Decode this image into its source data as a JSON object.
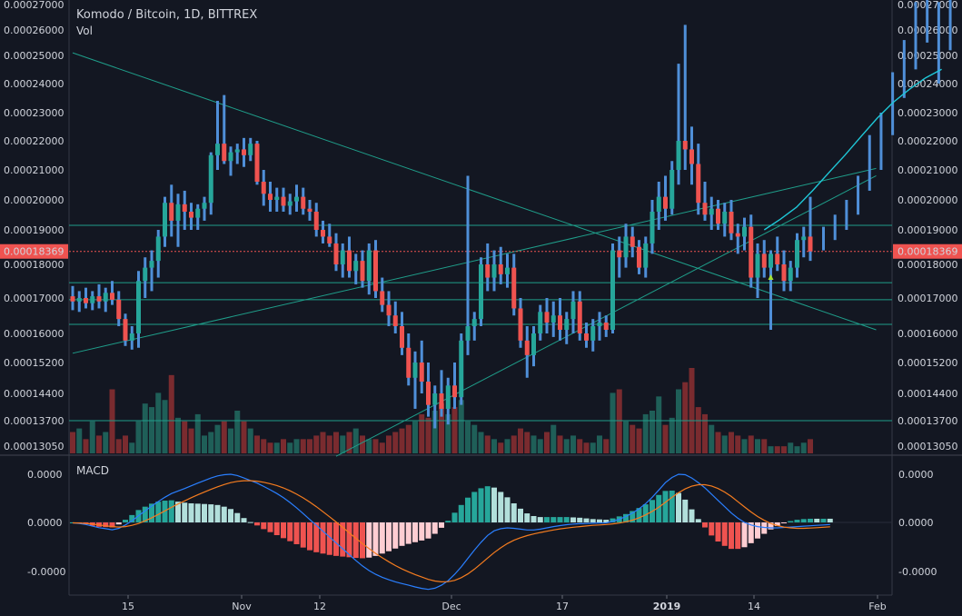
{
  "header": {
    "symbol_title": "Komodo / Bitcoin, 1D, BITTREX",
    "volume_label": "Vol",
    "macd_label": "MACD"
  },
  "colors": {
    "background": "#131722",
    "up": "#26a69a",
    "down": "#ef5350",
    "wick_blue": "#4f8fd8",
    "trend_line": "#1f9e8a",
    "moving_average": "#1fc8d8",
    "macd_line": "#2a7fff",
    "signal_line": "#f57c1f",
    "price_label_bg": "#ef5350",
    "grid": "#2a2e39"
  },
  "price_axis": {
    "ticks": [
      "0.00027000",
      "0.00026000",
      "0.00025000",
      "0.00024000",
      "0.00023000",
      "0.00022000",
      "0.00021000",
      "0.00020000",
      "0.00019000",
      "0.00018000",
      "0.00017000",
      "0.00016000",
      "0.00015200",
      "0.00014400",
      "0.00013700",
      "0.00013050"
    ],
    "current_price": "0.00018369"
  },
  "macd_axis": {
    "ticks": [
      "0.0000",
      "0.0000",
      "-0.0000"
    ]
  },
  "time_axis": {
    "labels": [
      "15",
      "Nov",
      "12",
      "Dec",
      "17",
      "2019",
      "14",
      "Feb"
    ],
    "bold_label": "2019"
  },
  "chart_data": {
    "type": "candlestick",
    "title": "Komodo / Bitcoin, 1D, BITTREX",
    "scale": "log",
    "ylim": [
      0.0001295,
      0.000271
    ],
    "x": {
      "start": "2018-10-06",
      "end": "2019-02-01"
    },
    "candles": [
      {
        "o": 0.0001705,
        "h": 0.0001735,
        "l": 0.0001665,
        "c": 0.000169
      },
      {
        "o": 0.000169,
        "h": 0.000172,
        "l": 0.000166,
        "c": 0.00017
      },
      {
        "o": 0.00017,
        "h": 0.000173,
        "l": 0.000167,
        "c": 0.0001685
      },
      {
        "o": 0.0001685,
        "h": 0.000172,
        "l": 0.0001665,
        "c": 0.0001705
      },
      {
        "o": 0.0001705,
        "h": 0.000174,
        "l": 0.000167,
        "c": 0.000169
      },
      {
        "o": 0.000169,
        "h": 0.000173,
        "l": 0.000166,
        "c": 0.0001715
      },
      {
        "o": 0.0001715,
        "h": 0.000175,
        "l": 0.000168,
        "c": 0.0001695
      },
      {
        "o": 0.0001695,
        "h": 0.000172,
        "l": 0.000162,
        "c": 0.000164
      },
      {
        "o": 0.000164,
        "h": 0.0001655,
        "l": 0.0001565,
        "c": 0.000158
      },
      {
        "o": 0.000158,
        "h": 0.000162,
        "l": 0.0001555,
        "c": 0.00016
      },
      {
        "o": 0.00016,
        "h": 0.000178,
        "l": 0.000156,
        "c": 0.000175
      },
      {
        "o": 0.000175,
        "h": 0.000182,
        "l": 0.00017,
        "c": 0.000179
      },
      {
        "o": 0.000179,
        "h": 0.000184,
        "l": 0.000172,
        "c": 0.000181
      },
      {
        "o": 0.000181,
        "h": 0.00019,
        "l": 0.000176,
        "c": 0.000188
      },
      {
        "o": 0.000188,
        "h": 0.000201,
        "l": 0.000185,
        "c": 0.000199
      },
      {
        "o": 0.000199,
        "h": 0.000205,
        "l": 0.000188,
        "c": 0.000193
      },
      {
        "o": 0.000193,
        "h": 0.000202,
        "l": 0.000185,
        "c": 0.0001985
      },
      {
        "o": 0.0001985,
        "h": 0.000203,
        "l": 0.00019,
        "c": 0.000196
      },
      {
        "o": 0.000196,
        "h": 0.000199,
        "l": 0.00019,
        "c": 0.000194
      },
      {
        "o": 0.000194,
        "h": 0.0001985,
        "l": 0.00019,
        "c": 0.000197
      },
      {
        "o": 0.000197,
        "h": 0.000201,
        "l": 0.000193,
        "c": 0.000199
      },
      {
        "o": 0.000199,
        "h": 0.000216,
        "l": 0.000195,
        "c": 0.000215
      },
      {
        "o": 0.000215,
        "h": 0.000234,
        "l": 0.00021,
        "c": 0.000219
      },
      {
        "o": 0.000219,
        "h": 0.000236,
        "l": 0.000212,
        "c": 0.000213
      },
      {
        "o": 0.000213,
        "h": 0.000218,
        "l": 0.000208,
        "c": 0.000216
      },
      {
        "o": 0.000216,
        "h": 0.000219,
        "l": 0.000212,
        "c": 0.000217
      },
      {
        "o": 0.000217,
        "h": 0.000221,
        "l": 0.000211,
        "c": 0.000215
      },
      {
        "o": 0.000215,
        "h": 0.000221,
        "l": 0.000213,
        "c": 0.000219
      },
      {
        "o": 0.000219,
        "h": 0.00022,
        "l": 0.000205,
        "c": 0.000206
      },
      {
        "o": 0.000206,
        "h": 0.00021,
        "l": 0.000198,
        "c": 0.000202
      },
      {
        "o": 0.000202,
        "h": 0.000206,
        "l": 0.000196,
        "c": 0.0002
      },
      {
        "o": 0.0002,
        "h": 0.000204,
        "l": 0.000196,
        "c": 0.000201
      },
      {
        "o": 0.000201,
        "h": 0.000204,
        "l": 0.000196,
        "c": 0.000198
      },
      {
        "o": 0.000198,
        "h": 0.000202,
        "l": 0.000195,
        "c": 0.0001995
      },
      {
        "o": 0.0001995,
        "h": 0.000205,
        "l": 0.000196,
        "c": 0.000201
      },
      {
        "o": 0.000201,
        "h": 0.000204,
        "l": 0.000195,
        "c": 0.000197
      },
      {
        "o": 0.000197,
        "h": 0.0002,
        "l": 0.000193,
        "c": 0.000196
      },
      {
        "o": 0.000196,
        "h": 0.000199,
        "l": 0.000188,
        "c": 0.00019
      },
      {
        "o": 0.00019,
        "h": 0.000193,
        "l": 0.000186,
        "c": 0.000188
      },
      {
        "o": 0.000188,
        "h": 0.000192,
        "l": 0.000185,
        "c": 0.000186
      },
      {
        "o": 0.000186,
        "h": 0.000189,
        "l": 0.000178,
        "c": 0.00018
      },
      {
        "o": 0.00018,
        "h": 0.000186,
        "l": 0.000176,
        "c": 0.000184
      },
      {
        "o": 0.000184,
        "h": 0.000188,
        "l": 0.000176,
        "c": 0.000178
      },
      {
        "o": 0.000178,
        "h": 0.000183,
        "l": 0.000174,
        "c": 0.000181
      },
      {
        "o": 0.000181,
        "h": 0.000184,
        "l": 0.000173,
        "c": 0.000175
      },
      {
        "o": 0.000175,
        "h": 0.000186,
        "l": 0.000171,
        "c": 0.000184
      },
      {
        "o": 0.000184,
        "h": 0.000187,
        "l": 0.00017,
        "c": 0.000172
      },
      {
        "o": 0.000172,
        "h": 0.000176,
        "l": 0.000166,
        "c": 0.000168
      },
      {
        "o": 0.000168,
        "h": 0.000172,
        "l": 0.000162,
        "c": 0.000165
      },
      {
        "o": 0.000165,
        "h": 0.000169,
        "l": 0.00016,
        "c": 0.000162
      },
      {
        "o": 0.000162,
        "h": 0.000166,
        "l": 0.000154,
        "c": 0.000156
      },
      {
        "o": 0.000156,
        "h": 0.00016,
        "l": 0.000146,
        "c": 0.000148
      },
      {
        "o": 0.000148,
        "h": 0.000155,
        "l": 0.00014,
        "c": 0.000152
      },
      {
        "o": 0.000152,
        "h": 0.000158,
        "l": 0.000144,
        "c": 0.000147
      },
      {
        "o": 0.000147,
        "h": 0.000152,
        "l": 0.000138,
        "c": 0.000141
      },
      {
        "o": 0.000141,
        "h": 0.000146,
        "l": 0.000135,
        "c": 0.000144
      },
      {
        "o": 0.000144,
        "h": 0.00015,
        "l": 0.000138,
        "c": 0.00014
      },
      {
        "o": 0.00014,
        "h": 0.000148,
        "l": 0.000136,
        "c": 0.000146
      },
      {
        "o": 0.000146,
        "h": 0.000152,
        "l": 0.00014,
        "c": 0.000143
      },
      {
        "o": 0.000143,
        "h": 0.00016,
        "l": 0.000141,
        "c": 0.000158
      },
      {
        "o": 0.000158,
        "h": 0.000208,
        "l": 0.000154,
        "c": 0.000162
      },
      {
        "o": 0.000162,
        "h": 0.000166,
        "l": 0.000158,
        "c": 0.000164
      },
      {
        "o": 0.000164,
        "h": 0.000182,
        "l": 0.000162,
        "c": 0.00018
      },
      {
        "o": 0.00018,
        "h": 0.000186,
        "l": 0.000172,
        "c": 0.000176
      },
      {
        "o": 0.000176,
        "h": 0.000184,
        "l": 0.000172,
        "c": 0.00018
      },
      {
        "o": 0.00018,
        "h": 0.000185,
        "l": 0.000174,
        "c": 0.000177
      },
      {
        "o": 0.000177,
        "h": 0.000183,
        "l": 0.000173,
        "c": 0.000179
      },
      {
        "o": 0.000179,
        "h": 0.000183,
        "l": 0.000165,
        "c": 0.000167
      },
      {
        "o": 0.000167,
        "h": 0.00017,
        "l": 0.000156,
        "c": 0.000158
      },
      {
        "o": 0.000158,
        "h": 0.000162,
        "l": 0.000148,
        "c": 0.000154
      },
      {
        "o": 0.000154,
        "h": 0.000162,
        "l": 0.000151,
        "c": 0.00016
      },
      {
        "o": 0.00016,
        "h": 0.000168,
        "l": 0.000158,
        "c": 0.000166
      },
      {
        "o": 0.000166,
        "h": 0.00017,
        "l": 0.00016,
        "c": 0.000163
      },
      {
        "o": 0.000163,
        "h": 0.000169,
        "l": 0.000159,
        "c": 0.000165
      },
      {
        "o": 0.000165,
        "h": 0.00017,
        "l": 0.000158,
        "c": 0.000161
      },
      {
        "o": 0.000161,
        "h": 0.000166,
        "l": 0.000157,
        "c": 0.000164
      },
      {
        "o": 0.000164,
        "h": 0.000172,
        "l": 0.00016,
        "c": 0.000169
      },
      {
        "o": 0.000169,
        "h": 0.000172,
        "l": 0.000158,
        "c": 0.00016
      },
      {
        "o": 0.00016,
        "h": 0.000163,
        "l": 0.000156,
        "c": 0.000158
      },
      {
        "o": 0.000158,
        "h": 0.000164,
        "l": 0.000155,
        "c": 0.000162
      },
      {
        "o": 0.000162,
        "h": 0.000166,
        "l": 0.000158,
        "c": 0.000163
      },
      {
        "o": 0.000163,
        "h": 0.000165,
        "l": 0.000159,
        "c": 0.000161
      },
      {
        "o": 0.000161,
        "h": 0.000186,
        "l": 0.00016,
        "c": 0.000184
      },
      {
        "o": 0.000184,
        "h": 0.000188,
        "l": 0.000176,
        "c": 0.000182
      },
      {
        "o": 0.000182,
        "h": 0.000192,
        "l": 0.000179,
        "c": 0.000188
      },
      {
        "o": 0.000188,
        "h": 0.000191,
        "l": 0.000182,
        "c": 0.000185
      },
      {
        "o": 0.000185,
        "h": 0.000187,
        "l": 0.000177,
        "c": 0.000179
      },
      {
        "o": 0.000179,
        "h": 0.000188,
        "l": 0.000176,
        "c": 0.000186
      },
      {
        "o": 0.000186,
        "h": 0.0002,
        "l": 0.000183,
        "c": 0.000196
      },
      {
        "o": 0.000196,
        "h": 0.000206,
        "l": 0.00019,
        "c": 0.000201
      },
      {
        "o": 0.000201,
        "h": 0.000208,
        "l": 0.000193,
        "c": 0.000197
      },
      {
        "o": 0.000197,
        "h": 0.000213,
        "l": 0.000195,
        "c": 0.00021
      },
      {
        "o": 0.00021,
        "h": 0.000247,
        "l": 0.000205,
        "c": 0.00022
      },
      {
        "o": 0.00022,
        "h": 0.000262,
        "l": 0.00021,
        "c": 0.000217
      },
      {
        "o": 0.000217,
        "h": 0.000225,
        "l": 0.000205,
        "c": 0.000212
      },
      {
        "o": 0.000212,
        "h": 0.000219,
        "l": 0.000195,
        "c": 0.000199
      },
      {
        "o": 0.000199,
        "h": 0.000206,
        "l": 0.000193,
        "c": 0.000195
      },
      {
        "o": 0.000195,
        "h": 0.000201,
        "l": 0.00019,
        "c": 0.000197
      },
      {
        "o": 0.000197,
        "h": 0.0002,
        "l": 0.00019,
        "c": 0.000192
      },
      {
        "o": 0.000192,
        "h": 0.000199,
        "l": 0.000188,
        "c": 0.000196
      },
      {
        "o": 0.000196,
        "h": 0.0002,
        "l": 0.000187,
        "c": 0.000189
      },
      {
        "o": 0.000189,
        "h": 0.000192,
        "l": 0.000183,
        "c": 0.000188
      },
      {
        "o": 0.000188,
        "h": 0.000194,
        "l": 0.000184,
        "c": 0.000191
      },
      {
        "o": 0.000191,
        "h": 0.000195,
        "l": 0.000173,
        "c": 0.000176
      },
      {
        "o": 0.000176,
        "h": 0.000186,
        "l": 0.00017,
        "c": 0.000183
      },
      {
        "o": 0.000183,
        "h": 0.000187,
        "l": 0.000176,
        "c": 0.000179
      },
      {
        "o": 0.000179,
        "h": 0.000184,
        "l": 0.000161,
        "c": 0.000183
      },
      {
        "o": 0.000183,
        "h": 0.000188,
        "l": 0.000178,
        "c": 0.00018
      },
      {
        "o": 0.00018,
        "h": 0.000184,
        "l": 0.000172,
        "c": 0.000175
      },
      {
        "o": 0.000175,
        "h": 0.000181,
        "l": 0.000172,
        "c": 0.000179
      },
      {
        "o": 0.000179,
        "h": 0.000189,
        "l": 0.000176,
        "c": 0.000187
      },
      {
        "o": 0.000187,
        "h": 0.000191,
        "l": 0.000182,
        "c": 0.000188
      },
      {
        "o": 0.000188,
        "h": 0.000201,
        "l": 0.000181,
        "c": 0.0001837
      }
    ],
    "gap_ranges": [
      {
        "h": 0.000191,
        "l": 0.000184
      },
      {
        "h": 0.000195,
        "l": 0.000187
      },
      {
        "h": 0.0002,
        "l": 0.00019
      },
      {
        "h": 0.000208,
        "l": 0.000195
      },
      {
        "h": 0.000222,
        "l": 0.000203
      },
      {
        "h": 0.00023,
        "l": 0.00021
      },
      {
        "h": 0.000244,
        "l": 0.000222
      },
      {
        "h": 0.000256,
        "l": 0.000235
      },
      {
        "h": 0.000271,
        "l": 0.000245
      },
      {
        "h": 0.000272,
        "l": 0.000255
      },
      {
        "h": 0.000271,
        "l": 0.00024
      },
      {
        "h": 0.000272,
        "l": 0.000252
      }
    ],
    "moving_average": [
      0.00019,
      0.0001935,
      0.0001975,
      0.000203,
      0.000209,
      0.000215,
      0.0002215,
      0.000228,
      0.0002335,
      0.000238,
      0.000242,
      0.000245
    ],
    "horizontal_levels": [
      0.0001915,
      0.0001745,
      0.0001695,
      0.0001625,
      0.000137
    ],
    "trend_lines": [
      {
        "from": {
          "i": 0,
          "p": 0.000251
        },
        "to": {
          "i": 122,
          "p": 0.000161
        }
      },
      {
        "from": {
          "i": 0,
          "p": 0.0001545
        },
        "to": {
          "i": 122,
          "p": 0.0002105
        }
      },
      {
        "from": {
          "i": 40,
          "p": 0.000128
        },
        "to": {
          "i": 122,
          "p": 0.000208
        }
      }
    ],
    "volume": [
      6,
      7,
      4,
      9,
      5,
      6,
      18,
      4,
      5,
      3,
      9,
      14,
      13,
      17,
      15,
      22,
      10,
      9,
      7,
      11,
      5,
      6,
      8,
      9,
      7,
      12,
      9,
      7,
      5,
      4,
      3,
      3,
      4,
      3,
      4,
      4,
      4,
      5,
      6,
      5,
      6,
      5,
      6,
      7,
      5,
      4,
      4,
      3,
      5,
      6,
      7,
      8,
      9,
      11,
      10,
      12,
      14,
      11,
      13,
      15,
      9,
      8,
      6,
      5,
      4,
      3,
      4,
      5,
      7,
      6,
      5,
      4,
      6,
      8,
      5,
      4,
      5,
      4,
      3,
      3,
      5,
      4,
      17,
      18,
      9,
      8,
      7,
      11,
      12,
      16,
      8,
      10,
      18,
      20,
      24,
      13,
      11,
      8,
      6,
      5,
      6,
      5,
      4,
      5,
      4,
      4,
      2,
      2,
      2,
      3,
      2,
      3,
      4,
      6,
      7,
      6
    ],
    "macd": [
      -0.02,
      -0.05,
      -0.1,
      -0.18,
      -0.25,
      -0.3,
      -0.35,
      -0.28,
      -0.12,
      0.08,
      0.32,
      0.55,
      0.78,
      1.0,
      1.2,
      1.38,
      1.5,
      1.62,
      1.75,
      1.88,
      2.0,
      2.12,
      2.22,
      2.28,
      2.3,
      2.24,
      2.12,
      2.0,
      1.88,
      1.72,
      1.56,
      1.38,
      1.18,
      0.95,
      0.7,
      0.42,
      0.14,
      -0.14,
      -0.42,
      -0.7,
      -0.98,
      -1.26,
      -1.54,
      -1.82,
      -2.08,
      -2.3,
      -2.48,
      -2.62,
      -2.74,
      -2.84,
      -2.92,
      -3.0,
      -3.08,
      -3.15,
      -3.2,
      -3.14,
      -3.0,
      -2.78,
      -2.48,
      -2.12,
      -1.72,
      -1.32,
      -0.95,
      -0.62,
      -0.4,
      -0.3,
      -0.26,
      -0.28,
      -0.32,
      -0.36,
      -0.36,
      -0.32,
      -0.26,
      -0.2,
      -0.15,
      -0.11,
      -0.08,
      -0.06,
      -0.05,
      -0.04,
      -0.03,
      -0.02,
      0.05,
      0.15,
      0.28,
      0.45,
      0.65,
      0.9,
      1.2,
      1.55,
      1.9,
      2.15,
      2.3,
      2.28,
      2.12,
      1.9,
      1.65,
      1.35,
      1.05,
      0.75,
      0.45,
      0.2,
      0.0,
      -0.12,
      -0.2,
      -0.24,
      -0.26,
      -0.26,
      -0.24,
      -0.22,
      -0.2,
      -0.18,
      -0.16,
      -0.14,
      -0.12,
      -0.1
    ],
    "signal": [
      -0.02,
      -0.03,
      -0.05,
      -0.08,
      -0.12,
      -0.16,
      -0.2,
      -0.22,
      -0.2,
      -0.14,
      -0.05,
      0.08,
      0.22,
      0.38,
      0.55,
      0.72,
      0.88,
      1.03,
      1.18,
      1.32,
      1.45,
      1.58,
      1.7,
      1.81,
      1.9,
      1.96,
      1.99,
      1.99,
      1.97,
      1.92,
      1.85,
      1.76,
      1.65,
      1.51,
      1.35,
      1.17,
      0.97,
      0.75,
      0.51,
      0.27,
      0.02,
      -0.24,
      -0.5,
      -0.76,
      -1.01,
      -1.25,
      -1.48,
      -1.69,
      -1.88,
      -2.06,
      -2.22,
      -2.36,
      -2.49,
      -2.61,
      -2.72,
      -2.8,
      -2.84,
      -2.83,
      -2.77,
      -2.64,
      -2.46,
      -2.23,
      -1.97,
      -1.7,
      -1.44,
      -1.21,
      -1.01,
      -0.85,
      -0.73,
      -0.63,
      -0.55,
      -0.48,
      -0.42,
      -0.36,
      -0.31,
      -0.27,
      -0.23,
      -0.2,
      -0.17,
      -0.14,
      -0.12,
      -0.1,
      -0.07,
      -0.03,
      0.03,
      0.11,
      0.22,
      0.36,
      0.53,
      0.73,
      0.96,
      1.2,
      1.42,
      1.6,
      1.73,
      1.8,
      1.8,
      1.74,
      1.62,
      1.45,
      1.24,
      0.99,
      0.74,
      0.5,
      0.28,
      0.1,
      -0.05,
      -0.15,
      -0.22,
      -0.26,
      -0.28,
      -0.28,
      -0.27,
      -0.25,
      -0.23,
      -0.21
    ],
    "macd_ylim": [
      -3.4,
      3.0
    ]
  }
}
